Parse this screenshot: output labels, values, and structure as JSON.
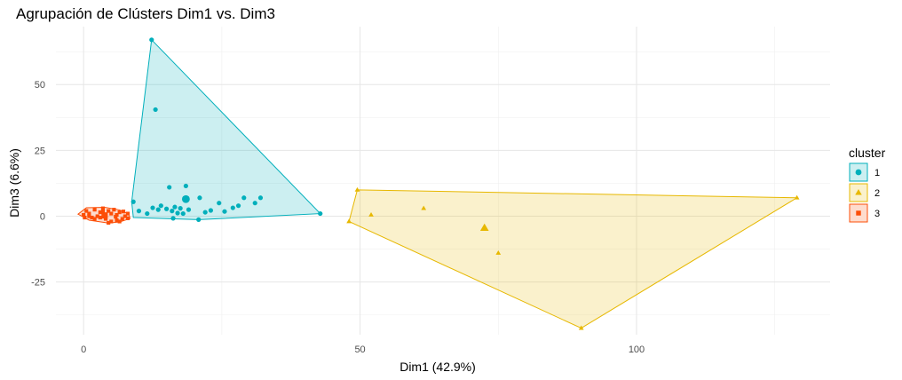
{
  "chart_data": {
    "type": "scatter",
    "title": "Agrupación de Clústers Dim1 vs. Dim3",
    "xlabel": "Dim1 (42.9%)",
    "ylabel": "Dim3 (6.6%)",
    "xlim": [
      -5,
      135
    ],
    "ylim": [
      -45,
      72
    ],
    "xticks": [
      0,
      50,
      100
    ],
    "yticks": [
      -25,
      0,
      25,
      50
    ],
    "grid": true,
    "legend": {
      "title": "cluster",
      "position": "right"
    },
    "series": [
      {
        "name": "1",
        "color": "#00AFBB",
        "marker": "circle",
        "hull": [
          [
            12.3,
            67
          ],
          [
            42.8,
            1
          ],
          [
            20.8,
            -1.3
          ],
          [
            9,
            -0.5
          ],
          [
            8.7,
            5.5
          ]
        ],
        "points": [
          [
            12.3,
            67
          ],
          [
            13,
            40.5
          ],
          [
            42.8,
            1
          ],
          [
            20.8,
            -1.3
          ],
          [
            9,
            5.5
          ],
          [
            10,
            2
          ],
          [
            11.5,
            1
          ],
          [
            12.5,
            3.2
          ],
          [
            13.5,
            2.5
          ],
          [
            14,
            4
          ],
          [
            15,
            2.8
          ],
          [
            15.5,
            11
          ],
          [
            16,
            2
          ],
          [
            16.5,
            3.5
          ],
          [
            17,
            1.2
          ],
          [
            17.5,
            3
          ],
          [
            18.5,
            11.5
          ],
          [
            19,
            2.5
          ],
          [
            21,
            7
          ],
          [
            22,
            1.5
          ],
          [
            23,
            2.2
          ],
          [
            24.5,
            5
          ],
          [
            25.5,
            1.8
          ],
          [
            27,
            3.2
          ],
          [
            28,
            4
          ],
          [
            29,
            7
          ],
          [
            31,
            5
          ],
          [
            32,
            7
          ],
          [
            16.2,
            -0.8
          ],
          [
            18,
            1
          ]
        ],
        "centroid": [
          18.5,
          6.5
        ]
      },
      {
        "name": "2",
        "color": "#E7B800",
        "marker": "triangle",
        "hull": [
          [
            49.5,
            10
          ],
          [
            129,
            7
          ],
          [
            90,
            -42.5
          ],
          [
            48,
            -2
          ]
        ],
        "points": [
          [
            49.5,
            10
          ],
          [
            129,
            7
          ],
          [
            90,
            -42.5
          ],
          [
            48,
            -2
          ],
          [
            52,
            0.5
          ],
          [
            61.5,
            3
          ],
          [
            75,
            -14
          ]
        ],
        "centroid": [
          72.5,
          -4.5
        ]
      },
      {
        "name": "3",
        "color": "#FC4E07",
        "marker": "square",
        "hull": [
          [
            -1,
            0.8
          ],
          [
            0.5,
            3.2
          ],
          [
            3.8,
            3.4
          ],
          [
            6.5,
            2.4
          ],
          [
            8.2,
            0.8
          ],
          [
            8.4,
            -0.9
          ],
          [
            6.5,
            -2.2
          ],
          [
            4.5,
            -2.6
          ],
          [
            1,
            -1.5
          ]
        ],
        "points": [
          [
            0,
            0.5
          ],
          [
            0.5,
            2
          ],
          [
            1,
            1
          ],
          [
            1.5,
            -0.5
          ],
          [
            2,
            2.5
          ],
          [
            2.5,
            0
          ],
          [
            3,
            1.5
          ],
          [
            3.5,
            3
          ],
          [
            4,
            -1
          ],
          [
            4,
            0.5
          ],
          [
            4.5,
            2
          ],
          [
            5,
            -2
          ],
          [
            5,
            1
          ],
          [
            5.5,
            2.5
          ],
          [
            6,
            -1.5
          ],
          [
            6,
            0.5
          ],
          [
            6.5,
            1.5
          ],
          [
            7,
            -1
          ],
          [
            7.5,
            0
          ],
          [
            8,
            1
          ],
          [
            1,
            0
          ],
          [
            2,
            -1
          ],
          [
            3,
            -0.5
          ],
          [
            4.5,
            -2.5
          ],
          [
            6.5,
            -2
          ],
          [
            8,
            -0.8
          ],
          [
            0.2,
            -0.5
          ],
          [
            3.5,
            1.8
          ],
          [
            5.8,
            -0.2
          ],
          [
            7.2,
            1.8
          ]
        ],
        "centroid": [
          3.8,
          0.3
        ]
      }
    ]
  }
}
